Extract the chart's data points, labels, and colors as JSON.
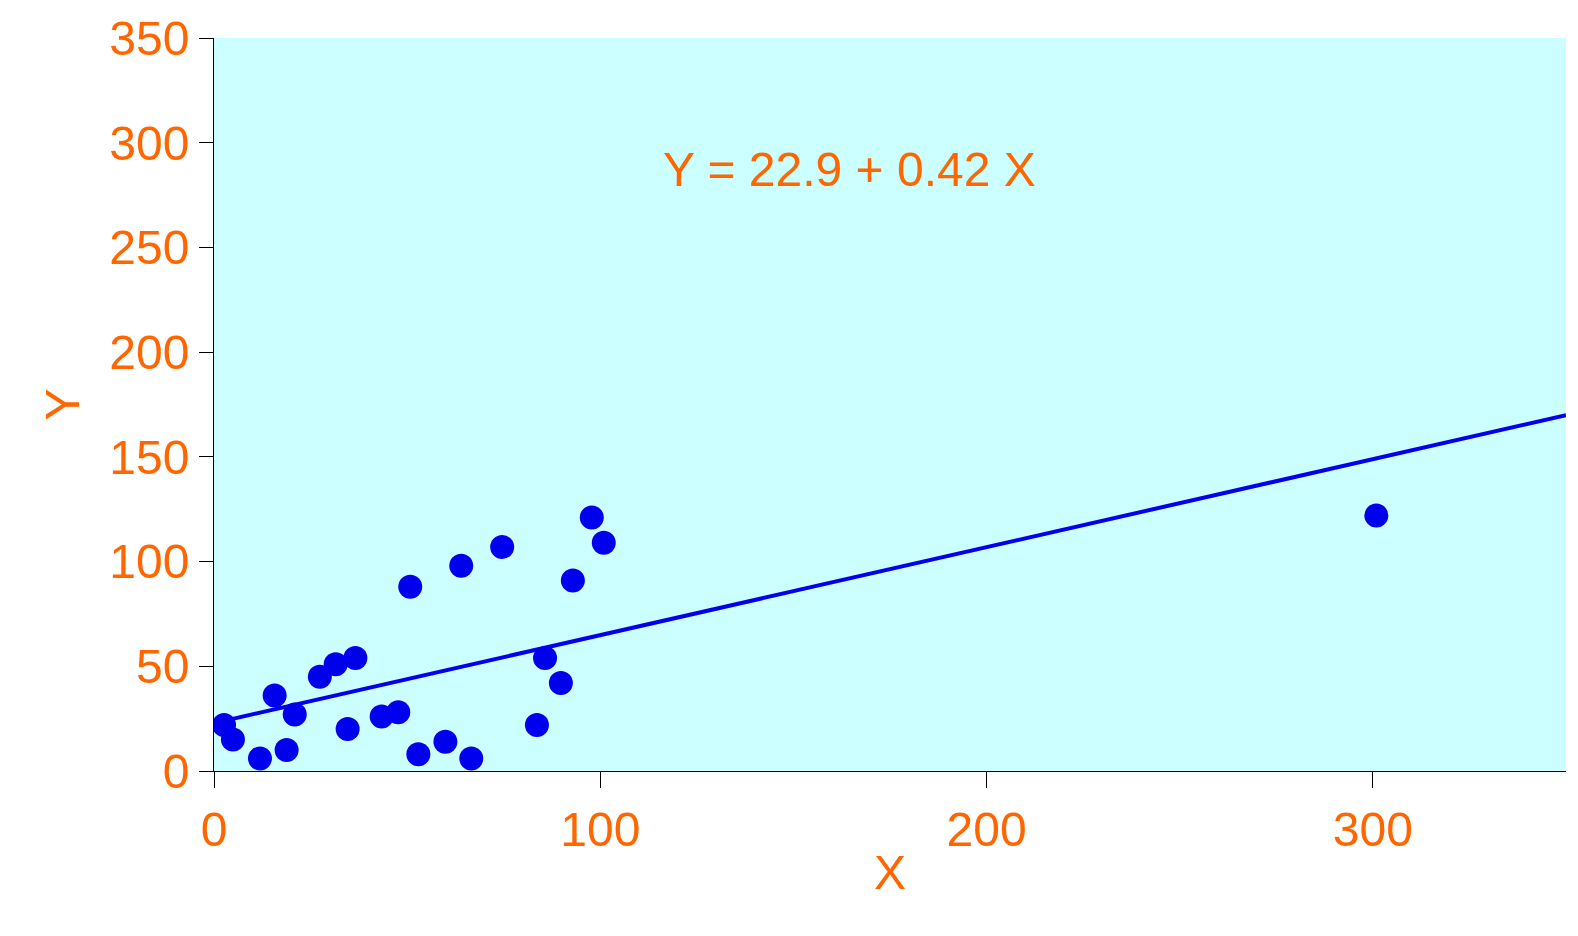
{
  "chart_data": {
    "type": "scatter",
    "xlabel": "X",
    "ylabel": "Y",
    "annotations": [
      "Y = 22.9 + 0.42 X"
    ],
    "xlim": [
      0,
      350
    ],
    "xticks": [
      0,
      100,
      200,
      300
    ],
    "ylim": [
      0,
      350
    ],
    "yticks": [
      0,
      50,
      100,
      150,
      200,
      250,
      300,
      350
    ],
    "grid": false,
    "series": [
      {
        "marker": "circle",
        "color": "#0000ee",
        "x": [
          2.6,
          4.9,
          11.9,
          15.7,
          18.8,
          20.9,
          27.4,
          31.5,
          34.6,
          36.6,
          43.4,
          47.7,
          50.8,
          52.9,
          59.9,
          64,
          66.6,
          74.6,
          83.6,
          85.7,
          89.8,
          92.9,
          97.8,
          100.9,
          300.9
        ],
        "values": [
          22,
          15,
          6,
          36,
          10,
          27,
          45,
          51,
          20,
          54,
          26,
          28,
          88,
          8,
          14,
          98,
          6,
          107,
          22,
          54,
          42,
          91,
          121,
          109,
          122
        ]
      },
      {
        "type": "line",
        "color": "#0000ee",
        "marker": "none",
        "line_style": "solid",
        "x": [
          2,
          350
        ],
        "values": [
          23.7,
          169.9
        ]
      }
    ]
  }
}
